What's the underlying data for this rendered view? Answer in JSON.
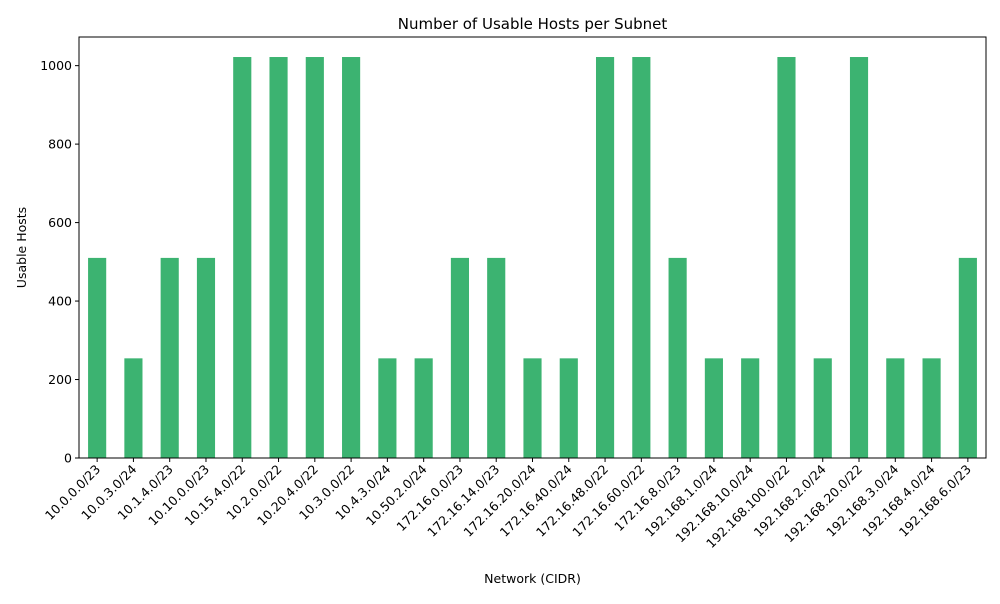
{
  "chart_data": {
    "type": "bar",
    "title": "Number of Usable Hosts per Subnet",
    "xlabel": "Network (CIDR)",
    "ylabel": "Usable Hosts",
    "categories": [
      "10.0.0.0/23",
      "10.0.3.0/24",
      "10.1.4.0/23",
      "10.10.0.0/23",
      "10.15.4.0/22",
      "10.2.0.0/22",
      "10.20.4.0/22",
      "10.3.0.0/22",
      "10.4.3.0/24",
      "10.50.2.0/24",
      "172.16.0.0/23",
      "172.16.14.0/23",
      "172.16.20.0/24",
      "172.16.40.0/24",
      "172.16.48.0/22",
      "172.16.60.0/22",
      "172.16.8.0/23",
      "192.168.1.0/24",
      "192.168.10.0/24",
      "192.168.100.0/22",
      "192.168.2.0/24",
      "192.168.20.0/22",
      "192.168.3.0/24",
      "192.168.4.0/24",
      "192.168.6.0/23"
    ],
    "values": [
      510,
      254,
      510,
      510,
      1022,
      1022,
      1022,
      1022,
      254,
      254,
      510,
      510,
      254,
      254,
      1022,
      1022,
      510,
      254,
      254,
      1022,
      254,
      1022,
      254,
      254,
      510
    ],
    "ylim": [
      0,
      1073
    ],
    "yticks": [
      0,
      200,
      400,
      600,
      800,
      1000
    ],
    "bar_color": "#3cb371",
    "grid": false,
    "legend": "none"
  }
}
